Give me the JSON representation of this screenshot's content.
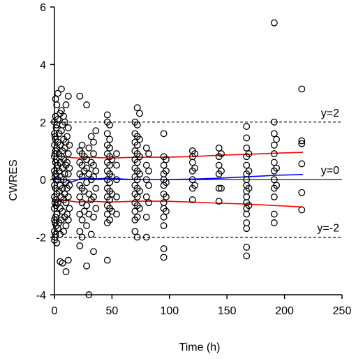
{
  "chart_data": {
    "type": "scatter",
    "xlabel": "Time (h)",
    "ylabel": "CWRES",
    "xlim": [
      0,
      250
    ],
    "ylim": [
      -4,
      6
    ],
    "x_ticks": [
      0,
      50,
      100,
      150,
      200,
      250
    ],
    "y_ticks": [
      -4,
      -2,
      0,
      2,
      4,
      6
    ],
    "grid": false,
    "reference_lines": [
      {
        "y": 2,
        "style": "dashed",
        "color": "#000000",
        "label": "y=2"
      },
      {
        "y": 0,
        "style": "solid",
        "color": "#000000",
        "label": "y=0"
      },
      {
        "y": -2,
        "style": "dashed",
        "color": "#000000",
        "label": "y=-2"
      }
    ],
    "lines": [
      {
        "color": "#ff0000",
        "points": [
          [
            1,
            0.85
          ],
          [
            5,
            0.82
          ],
          [
            10,
            0.78
          ],
          [
            20,
            0.75
          ],
          [
            30,
            0.78
          ],
          [
            48,
            0.75
          ],
          [
            72,
            0.78
          ],
          [
            96,
            0.78
          ],
          [
            120,
            0.8
          ],
          [
            144,
            0.85
          ],
          [
            168,
            0.88
          ],
          [
            192,
            0.92
          ],
          [
            216,
            0.95
          ]
        ]
      },
      {
        "color": "#0000ff",
        "points": [
          [
            1,
            0.05
          ],
          [
            5,
            0.02
          ],
          [
            10,
            0.0
          ],
          [
            15,
            -0.08
          ],
          [
            24,
            0.05
          ],
          [
            36,
            0.03
          ],
          [
            48,
            0.05
          ],
          [
            60,
            0.02
          ],
          [
            72,
            0.0
          ],
          [
            96,
            0.0
          ],
          [
            120,
            0.02
          ],
          [
            144,
            0.05
          ],
          [
            168,
            0.1
          ],
          [
            192,
            0.15
          ],
          [
            216,
            0.18
          ]
        ]
      },
      {
        "color": "#ff0000",
        "points": [
          [
            1,
            -0.78
          ],
          [
            5,
            -0.75
          ],
          [
            10,
            -0.72
          ],
          [
            20,
            -0.78
          ],
          [
            30,
            -0.75
          ],
          [
            48,
            -0.78
          ],
          [
            72,
            -0.75
          ],
          [
            96,
            -0.75
          ],
          [
            120,
            -0.78
          ],
          [
            144,
            -0.82
          ],
          [
            168,
            -0.85
          ],
          [
            192,
            -0.9
          ],
          [
            216,
            -0.95
          ]
        ]
      }
    ],
    "points": [
      [
        0,
        -2.1
      ],
      [
        0,
        -1.8
      ],
      [
        0,
        -1.4
      ],
      [
        0,
        -1.0
      ],
      [
        0,
        -0.6
      ],
      [
        0,
        -0.2
      ],
      [
        0,
        0.3
      ],
      [
        0,
        0.8
      ],
      [
        0,
        1.2
      ],
      [
        0,
        1.6
      ],
      [
        0,
        2.0
      ],
      [
        0.5,
        -2.0
      ],
      [
        0.5,
        -1.5
      ],
      [
        0.5,
        -0.8
      ],
      [
        0.5,
        0.1
      ],
      [
        0.5,
        0.9
      ],
      [
        0.5,
        1.5
      ],
      [
        1,
        -1.9
      ],
      [
        1,
        -1.3
      ],
      [
        1,
        -0.7
      ],
      [
        1,
        -0.3
      ],
      [
        1,
        0.2
      ],
      [
        1,
        0.6
      ],
      [
        1,
        1.0
      ],
      [
        1,
        1.4
      ],
      [
        1,
        2.2
      ],
      [
        1,
        2.8
      ],
      [
        1.5,
        -1.6
      ],
      [
        1.5,
        -0.9
      ],
      [
        1.5,
        0.0
      ],
      [
        1.5,
        0.7
      ],
      [
        1.5,
        1.8
      ],
      [
        2,
        -2.2
      ],
      [
        2,
        -1.2
      ],
      [
        2,
        -0.5
      ],
      [
        2,
        0.4
      ],
      [
        2,
        1.1
      ],
      [
        2,
        1.9
      ],
      [
        2,
        2.6
      ],
      [
        3,
        -1.7
      ],
      [
        3,
        -0.8
      ],
      [
        3,
        0.0
      ],
      [
        3,
        0.5
      ],
      [
        3,
        1.3
      ],
      [
        3,
        2.1
      ],
      [
        3,
        3.0
      ],
      [
        4,
        -1.5
      ],
      [
        4,
        -0.4
      ],
      [
        4,
        0.3
      ],
      [
        4,
        0.9
      ],
      [
        4,
        1.6
      ],
      [
        5,
        -2.85
      ],
      [
        5,
        -1.9
      ],
      [
        5,
        -1.0
      ],
      [
        5,
        -0.2
      ],
      [
        5,
        0.6
      ],
      [
        5,
        1.2
      ],
      [
        5,
        2.3
      ],
      [
        6,
        -1.4
      ],
      [
        6,
        -0.6
      ],
      [
        6,
        0.1
      ],
      [
        6,
        0.8
      ],
      [
        6,
        1.7
      ],
      [
        6,
        2.4
      ],
      [
        6,
        3.15
      ],
      [
        7,
        -2.9
      ],
      [
        7,
        -1.1
      ],
      [
        7,
        -0.3
      ],
      [
        7,
        0.4
      ],
      [
        7,
        1.0
      ],
      [
        7,
        1.9
      ],
      [
        8,
        -1.8
      ],
      [
        8,
        -0.7
      ],
      [
        8,
        0.0
      ],
      [
        8,
        0.7
      ],
      [
        8,
        1.4
      ],
      [
        8,
        2.2
      ],
      [
        9,
        -1.3
      ],
      [
        9,
        -0.5
      ],
      [
        9,
        0.2
      ],
      [
        9,
        1.1
      ],
      [
        9,
        2.0
      ],
      [
        10,
        -3.2
      ],
      [
        10,
        -1.6
      ],
      [
        10,
        -0.8
      ],
      [
        10,
        -0.1
      ],
      [
        10,
        0.5
      ],
      [
        10,
        1.3
      ],
      [
        10,
        2.6
      ],
      [
        11,
        -1.2
      ],
      [
        11,
        -0.3
      ],
      [
        11,
        0.6
      ],
      [
        11,
        1.5
      ],
      [
        12,
        -2.8
      ],
      [
        12,
        -1.4
      ],
      [
        12,
        -0.6
      ],
      [
        12,
        0.2
      ],
      [
        12,
        0.9
      ],
      [
        12,
        1.8
      ],
      [
        12,
        2.9
      ],
      [
        13,
        -1.0
      ],
      [
        13,
        -0.2
      ],
      [
        13,
        0.4
      ],
      [
        13,
        1.2
      ],
      [
        22,
        -2.3
      ],
      [
        22,
        -1.8
      ],
      [
        22,
        -1.2
      ],
      [
        22,
        -0.6
      ],
      [
        22,
        -0.2
      ],
      [
        22,
        0.2
      ],
      [
        22,
        0.6
      ],
      [
        22,
        1.0
      ],
      [
        22,
        2.9
      ],
      [
        24,
        -2.0
      ],
      [
        24,
        -1.4
      ],
      [
        24,
        -0.8
      ],
      [
        24,
        -0.3
      ],
      [
        24,
        0.1
      ],
      [
        24,
        0.5
      ],
      [
        24,
        0.9
      ],
      [
        24,
        1.2
      ],
      [
        26,
        -1.1
      ],
      [
        26,
        -0.4
      ],
      [
        26,
        0.3
      ],
      [
        26,
        0.8
      ],
      [
        28,
        -3.0
      ],
      [
        28,
        -1.6
      ],
      [
        28,
        -0.9
      ],
      [
        28,
        -0.1
      ],
      [
        28,
        0.4
      ],
      [
        28,
        0.7
      ],
      [
        28,
        2.6
      ],
      [
        30,
        -4.0
      ],
      [
        30,
        -1.2
      ],
      [
        30,
        -0.5
      ],
      [
        30,
        0.2
      ],
      [
        30,
        1.1
      ],
      [
        32,
        -1.9
      ],
      [
        32,
        -0.7
      ],
      [
        32,
        0.0
      ],
      [
        32,
        0.6
      ],
      [
        32,
        1.5
      ],
      [
        34,
        -2.5
      ],
      [
        34,
        -1.3
      ],
      [
        34,
        -0.6
      ],
      [
        34,
        0.1
      ],
      [
        34,
        0.5
      ],
      [
        34,
        0.9
      ],
      [
        34,
        1.3
      ],
      [
        36,
        -1.0
      ],
      [
        36,
        -0.3
      ],
      [
        36,
        0.3
      ],
      [
        36,
        1.7
      ],
      [
        46,
        -2.8
      ],
      [
        46,
        -1.5
      ],
      [
        46,
        -1.2
      ],
      [
        46,
        -0.9
      ],
      [
        46,
        -0.6
      ],
      [
        46,
        -0.3
      ],
      [
        46,
        0.0
      ],
      [
        46,
        0.3
      ],
      [
        46,
        0.6
      ],
      [
        46,
        0.9
      ],
      [
        46,
        1.2
      ],
      [
        46,
        1.6
      ],
      [
        46,
        2.0
      ],
      [
        46,
        2.25
      ],
      [
        48,
        -1.4
      ],
      [
        48,
        -1.0
      ],
      [
        48,
        -0.7
      ],
      [
        48,
        -0.4
      ],
      [
        48,
        -0.1
      ],
      [
        48,
        0.2
      ],
      [
        48,
        0.5
      ],
      [
        48,
        0.8
      ],
      [
        48,
        1.1
      ],
      [
        48,
        1.4
      ],
      [
        48,
        1.9
      ],
      [
        50,
        -1.1
      ],
      [
        50,
        -0.5
      ],
      [
        50,
        0.1
      ],
      [
        50,
        0.7
      ],
      [
        54,
        -1.2
      ],
      [
        54,
        -0.6
      ],
      [
        54,
        0.0
      ],
      [
        54,
        0.5
      ],
      [
        54,
        0.9
      ],
      [
        70,
        -1.8
      ],
      [
        70,
        -1.4
      ],
      [
        70,
        -1.1
      ],
      [
        70,
        -0.8
      ],
      [
        70,
        -0.5
      ],
      [
        70,
        -0.2
      ],
      [
        70,
        0.1
      ],
      [
        70,
        0.4
      ],
      [
        70,
        0.7
      ],
      [
        70,
        1.0
      ],
      [
        70,
        1.3
      ],
      [
        70,
        1.6
      ],
      [
        70,
        2.0
      ],
      [
        72,
        -2.0
      ],
      [
        72,
        -1.3
      ],
      [
        72,
        -0.9
      ],
      [
        72,
        -0.6
      ],
      [
        72,
        -0.3
      ],
      [
        72,
        0.0
      ],
      [
        72,
        0.3
      ],
      [
        72,
        0.6
      ],
      [
        72,
        0.9
      ],
      [
        72,
        1.2
      ],
      [
        72,
        1.5
      ],
      [
        72,
        1.9
      ],
      [
        72,
        2.5
      ],
      [
        74,
        -1.0
      ],
      [
        74,
        -0.4
      ],
      [
        74,
        0.2
      ],
      [
        74,
        0.8
      ],
      [
        74,
        1.4
      ],
      [
        74,
        2.3
      ],
      [
        80,
        -2.0
      ],
      [
        80,
        -1.3
      ],
      [
        80,
        -0.6
      ],
      [
        80,
        0.0
      ],
      [
        80,
        0.5
      ],
      [
        80,
        1.1
      ],
      [
        82,
        -0.8
      ],
      [
        82,
        -0.2
      ],
      [
        82,
        0.3
      ],
      [
        82,
        0.9
      ],
      [
        95,
        -2.7
      ],
      [
        95,
        -2.4
      ],
      [
        95,
        -1.6
      ],
      [
        95,
        -1.3
      ],
      [
        95,
        -1.0
      ],
      [
        95,
        -0.8
      ],
      [
        95,
        -0.5
      ],
      [
        95,
        -0.2
      ],
      [
        95,
        0.0
      ],
      [
        95,
        0.2
      ],
      [
        95,
        0.5
      ],
      [
        95,
        0.8
      ],
      [
        95,
        1.6
      ],
      [
        97,
        -1.1
      ],
      [
        97,
        -0.6
      ],
      [
        97,
        -0.1
      ],
      [
        97,
        0.3
      ],
      [
        97,
        0.7
      ],
      [
        120,
        -0.7
      ],
      [
        120,
        -0.3
      ],
      [
        120,
        0.0
      ],
      [
        120,
        0.3
      ],
      [
        120,
        0.6
      ],
      [
        120,
        0.8
      ],
      [
        120,
        1.0
      ],
      [
        122,
        -0.2
      ],
      [
        122,
        0.4
      ],
      [
        122,
        0.9
      ],
      [
        143,
        -0.75
      ],
      [
        143,
        -0.3
      ],
      [
        143,
        0.2
      ],
      [
        143,
        0.5
      ],
      [
        143,
        0.8
      ],
      [
        143,
        1.1
      ],
      [
        145,
        -0.3
      ],
      [
        145,
        0.3
      ],
      [
        145,
        0.9
      ],
      [
        167,
        -2.65
      ],
      [
        167,
        -2.35
      ],
      [
        167,
        -1.7
      ],
      [
        167,
        -1.5
      ],
      [
        167,
        -1.2
      ],
      [
        167,
        -1.0
      ],
      [
        167,
        -0.8
      ],
      [
        167,
        -0.6
      ],
      [
        167,
        -0.4
      ],
      [
        167,
        -0.2
      ],
      [
        167,
        0.0
      ],
      [
        167,
        0.2
      ],
      [
        167,
        0.5
      ],
      [
        167,
        0.8
      ],
      [
        167,
        1.1
      ],
      [
        167,
        1.45
      ],
      [
        167,
        1.85
      ],
      [
        169,
        -0.9
      ],
      [
        169,
        -0.3
      ],
      [
        169,
        0.3
      ],
      [
        169,
        0.9
      ],
      [
        191,
        -1.5
      ],
      [
        191,
        -1.2
      ],
      [
        191,
        -0.6
      ],
      [
        191,
        -0.3
      ],
      [
        191,
        0.0
      ],
      [
        191,
        0.3
      ],
      [
        191,
        0.6
      ],
      [
        191,
        0.9
      ],
      [
        191,
        1.2
      ],
      [
        191,
        1.6
      ],
      [
        191,
        2.0
      ],
      [
        191,
        5.45
      ],
      [
        193,
        -0.2
      ],
      [
        193,
        0.4
      ],
      [
        193,
        1.4
      ],
      [
        215,
        -1.05
      ],
      [
        215,
        -0.45
      ],
      [
        215,
        0.55
      ],
      [
        215,
        1.25
      ],
      [
        215,
        1.35
      ],
      [
        215,
        3.15
      ]
    ]
  }
}
